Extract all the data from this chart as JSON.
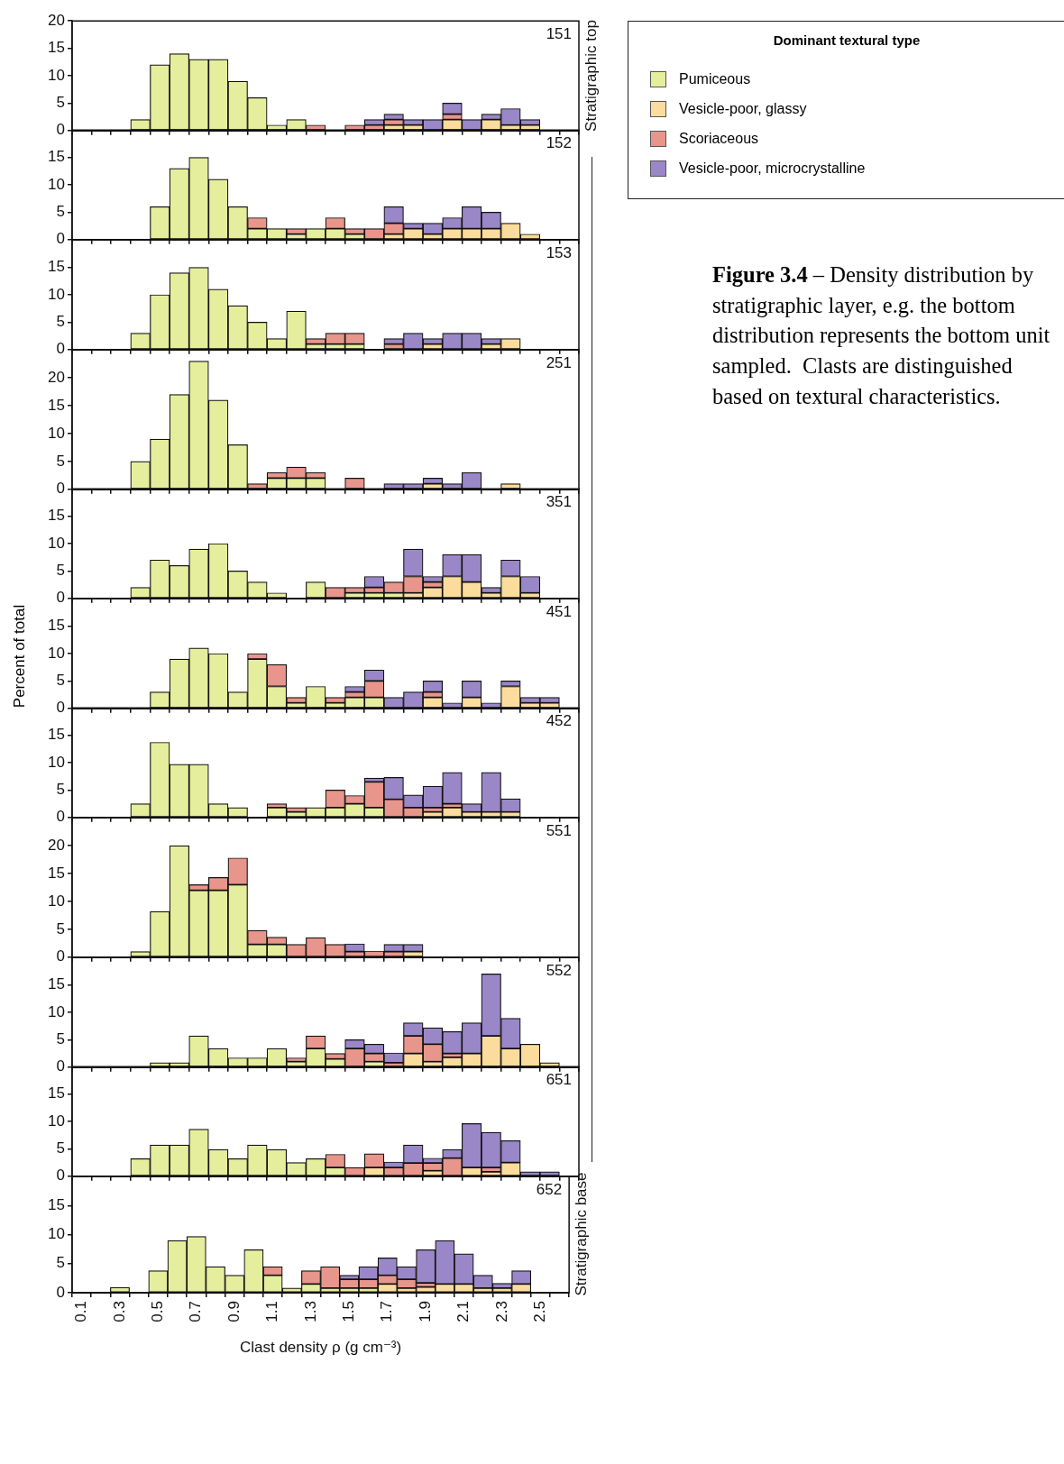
{
  "chart_data": [
    {
      "type": "bar",
      "stacked": true,
      "title": "151",
      "tick_labels": "y",
      "legend": "right",
      "legend_title": "Dominant textural type",
      "annotations": [
        "Stratigraphic top",
        "Figure 3.4",
        "– Density distribution by stratigraphic layer, e.g. the bottom distribution represents the bottom unit sampled.  Clasts are distinguished based on textural characteristics."
      ],
      "categories": [
        "0.1",
        null,
        "0.3",
        null,
        "0.5",
        null,
        "0.7",
        null,
        "0.9",
        null,
        "1.1",
        null,
        "1.3",
        null,
        "1.5",
        null,
        "1.7",
        null,
        "1.9",
        null,
        "2.1",
        null,
        "2.3",
        null,
        "2.5",
        null
      ],
      "ylim": [
        0,
        20
      ],
      "yticks": [
        0,
        5,
        10,
        15,
        20
      ],
      "series": [
        {
          "name": "Pumiceous",
          "color": "#e5ee9c",
          "values": [
            null,
            null,
            null,
            2,
            12,
            14,
            13,
            13,
            9,
            6,
            1,
            2,
            null,
            null,
            null,
            null,
            null,
            null,
            null,
            null,
            null,
            null,
            null,
            null,
            null,
            null
          ]
        },
        {
          "name": "Vesicle-poor, glassy",
          "color": "#fbdc9c",
          "values": [
            null,
            null,
            null,
            null,
            null,
            null,
            null,
            null,
            null,
            null,
            null,
            null,
            null,
            null,
            null,
            null,
            1,
            1,
            null,
            2,
            null,
            2,
            1,
            1,
            null,
            null
          ]
        },
        {
          "name": "Scoriaceous",
          "color": "#e8958b",
          "values": [
            null,
            null,
            null,
            null,
            null,
            null,
            null,
            null,
            null,
            null,
            null,
            null,
            1,
            null,
            1,
            1,
            1,
            null,
            null,
            1,
            null,
            null,
            null,
            null,
            null,
            null
          ]
        },
        {
          "name": "Vesicle-poor, microcrystalline",
          "color": "#9a87c8",
          "values": [
            null,
            null,
            null,
            null,
            null,
            null,
            null,
            null,
            null,
            null,
            null,
            null,
            null,
            null,
            null,
            1,
            1,
            1,
            2,
            2,
            2,
            1,
            3,
            1,
            null,
            null
          ]
        }
      ]
    },
    {
      "type": "bar",
      "stacked": true,
      "title": "152",
      "tick_labels": "y",
      "categories": [
        "0.1",
        null,
        "0.3",
        null,
        "0.5",
        null,
        "0.7",
        null,
        "0.9",
        null,
        "1.1",
        null,
        "1.3",
        null,
        "1.5",
        null,
        "1.7",
        null,
        "1.9",
        null,
        "2.1",
        null,
        "2.3",
        null,
        "2.5",
        null
      ],
      "ylim": [
        0,
        20
      ],
      "yticks": [
        0,
        5,
        10,
        15
      ],
      "series": [
        {
          "color": "#e5ee9c",
          "values": [
            null,
            null,
            null,
            null,
            6,
            13,
            15,
            11,
            6,
            2,
            2,
            1,
            2,
            2,
            1,
            null,
            null,
            null,
            null,
            null,
            null,
            null,
            null,
            null,
            null,
            null
          ]
        },
        {
          "color": "#fbdc9c",
          "values": [
            null,
            null,
            null,
            null,
            null,
            null,
            null,
            null,
            null,
            null,
            null,
            null,
            null,
            null,
            null,
            null,
            1,
            2,
            1,
            2,
            2,
            2,
            3,
            1,
            null,
            null
          ]
        },
        {
          "color": "#e8958b",
          "values": [
            null,
            null,
            null,
            null,
            null,
            null,
            null,
            null,
            null,
            2,
            null,
            1,
            null,
            2,
            1,
            2,
            2,
            null,
            null,
            null,
            null,
            null,
            null,
            null,
            null,
            null
          ]
        },
        {
          "color": "#9a87c8",
          "values": [
            null,
            null,
            null,
            null,
            null,
            null,
            null,
            null,
            null,
            null,
            null,
            null,
            null,
            null,
            null,
            null,
            3,
            1,
            2,
            2,
            4,
            3,
            null,
            null,
            null,
            null
          ]
        }
      ]
    },
    {
      "type": "bar",
      "stacked": true,
      "title": "153",
      "tick_labels": "y",
      "categories": [
        "0.1",
        null,
        "0.3",
        null,
        "0.5",
        null,
        "0.7",
        null,
        "0.9",
        null,
        "1.1",
        null,
        "1.3",
        null,
        "1.5",
        null,
        "1.7",
        null,
        "1.9",
        null,
        "2.1",
        null,
        "2.3",
        null,
        "2.5",
        null
      ],
      "ylim": [
        0,
        20
      ],
      "yticks": [
        0,
        5,
        10,
        15
      ],
      "series": [
        {
          "color": "#e5ee9c",
          "values": [
            null,
            null,
            null,
            3,
            10,
            14,
            15,
            11,
            8,
            5,
            2,
            7,
            1,
            1,
            1,
            null,
            null,
            null,
            null,
            null,
            null,
            null,
            null,
            null,
            null,
            null
          ]
        },
        {
          "color": "#fbdc9c",
          "values": [
            null,
            null,
            null,
            null,
            null,
            null,
            null,
            null,
            null,
            null,
            null,
            null,
            null,
            null,
            null,
            null,
            null,
            null,
            1,
            null,
            null,
            1,
            2,
            null,
            null,
            null
          ]
        },
        {
          "color": "#e8958b",
          "values": [
            null,
            null,
            null,
            null,
            null,
            null,
            null,
            null,
            null,
            null,
            null,
            null,
            1,
            2,
            2,
            null,
            1,
            null,
            null,
            null,
            null,
            null,
            null,
            null,
            null,
            null
          ]
        },
        {
          "color": "#9a87c8",
          "values": [
            null,
            null,
            null,
            null,
            null,
            null,
            null,
            null,
            null,
            null,
            null,
            null,
            null,
            null,
            null,
            null,
            1,
            3,
            1,
            3,
            3,
            1,
            null,
            null,
            null,
            null
          ]
        }
      ]
    },
    {
      "type": "bar",
      "stacked": true,
      "title": "251",
      "tick_labels": "y",
      "categories": [
        "0.1",
        null,
        "0.3",
        null,
        "0.5",
        null,
        "0.7",
        null,
        "0.9",
        null,
        "1.1",
        null,
        "1.3",
        null,
        "1.5",
        null,
        "1.7",
        null,
        "1.9",
        null,
        "2.1",
        null,
        "2.3",
        null,
        "2.5",
        null
      ],
      "ylim": [
        0,
        25
      ],
      "yticks": [
        0,
        5,
        10,
        15,
        20
      ],
      "series": [
        {
          "color": "#e5ee9c",
          "values": [
            null,
            null,
            null,
            5,
            9,
            17,
            23,
            16,
            8,
            null,
            2,
            2,
            2,
            null,
            null,
            null,
            null,
            null,
            null,
            null,
            null,
            null,
            null,
            null,
            null,
            null
          ]
        },
        {
          "color": "#fbdc9c",
          "values": [
            null,
            null,
            null,
            null,
            null,
            null,
            null,
            null,
            null,
            null,
            null,
            null,
            null,
            null,
            null,
            null,
            null,
            null,
            1,
            null,
            null,
            null,
            1,
            null,
            null,
            null
          ]
        },
        {
          "color": "#e8958b",
          "values": [
            null,
            null,
            null,
            null,
            null,
            null,
            null,
            null,
            null,
            1,
            1,
            2,
            1,
            null,
            2,
            null,
            null,
            null,
            null,
            null,
            null,
            null,
            null,
            null,
            null,
            null
          ]
        },
        {
          "color": "#9a87c8",
          "values": [
            null,
            null,
            null,
            null,
            null,
            null,
            null,
            null,
            null,
            null,
            null,
            null,
            null,
            null,
            null,
            null,
            1,
            1,
            1,
            1,
            3,
            null,
            null,
            null,
            null,
            null
          ]
        }
      ]
    },
    {
      "type": "bar",
      "stacked": true,
      "title": "351",
      "tick_labels": "y",
      "ylabel": "Percent of total",
      "categories": [
        "0.1",
        null,
        "0.3",
        null,
        "0.5",
        null,
        "0.7",
        null,
        "0.9",
        null,
        "1.1",
        null,
        "1.3",
        null,
        "1.5",
        null,
        "1.7",
        null,
        "1.9",
        null,
        "2.1",
        null,
        "2.3",
        null,
        "2.5",
        null
      ],
      "ylim": [
        0,
        20
      ],
      "yticks": [
        0,
        5,
        10,
        15
      ],
      "series": [
        {
          "color": "#e5ee9c",
          "values": [
            null,
            null,
            null,
            2,
            7,
            6,
            9,
            10,
            5,
            3,
            1,
            null,
            3,
            null,
            1,
            1,
            1,
            null,
            null,
            null,
            null,
            null,
            null,
            null,
            null,
            null
          ]
        },
        {
          "color": "#fbdc9c",
          "values": [
            null,
            null,
            null,
            null,
            null,
            null,
            null,
            null,
            null,
            null,
            null,
            null,
            null,
            null,
            null,
            null,
            null,
            1,
            2,
            4,
            3,
            1,
            4,
            1,
            null,
            null
          ]
        },
        {
          "color": "#e8958b",
          "values": [
            null,
            null,
            null,
            null,
            null,
            null,
            null,
            null,
            null,
            null,
            null,
            null,
            null,
            2,
            1,
            1,
            2,
            3,
            1,
            null,
            null,
            null,
            null,
            null,
            null,
            null
          ]
        },
        {
          "color": "#9a87c8",
          "values": [
            null,
            null,
            null,
            null,
            null,
            null,
            null,
            null,
            null,
            null,
            null,
            null,
            null,
            null,
            null,
            2,
            null,
            5,
            1,
            4,
            5,
            1,
            3,
            3,
            null,
            null
          ]
        }
      ]
    },
    {
      "type": "bar",
      "stacked": true,
      "title": "451",
      "tick_labels": "y",
      "categories": [
        "0.1",
        null,
        "0.3",
        null,
        "0.5",
        null,
        "0.7",
        null,
        "0.9",
        null,
        "1.1",
        null,
        "1.3",
        null,
        "1.5",
        null,
        "1.7",
        null,
        "1.9",
        null,
        "2.1",
        null,
        "2.3",
        null,
        "2.5",
        null
      ],
      "ylim": [
        0,
        20
      ],
      "yticks": [
        0,
        5,
        10,
        15
      ],
      "series": [
        {
          "color": "#e5ee9c",
          "values": [
            null,
            null,
            null,
            null,
            3,
            9,
            11,
            10,
            3,
            9,
            4,
            1,
            4,
            1,
            2,
            2,
            null,
            null,
            null,
            null,
            null,
            null,
            null,
            null,
            null,
            null
          ]
        },
        {
          "color": "#fbdc9c",
          "values": [
            null,
            null,
            null,
            null,
            null,
            null,
            null,
            null,
            null,
            null,
            null,
            null,
            null,
            null,
            null,
            null,
            null,
            null,
            2,
            null,
            2,
            null,
            4,
            1,
            1,
            null
          ]
        },
        {
          "color": "#e8958b",
          "values": [
            null,
            null,
            null,
            null,
            null,
            null,
            null,
            null,
            null,
            1,
            4,
            1,
            null,
            1,
            1,
            3,
            null,
            null,
            1,
            null,
            null,
            null,
            null,
            null,
            null,
            null
          ]
        },
        {
          "color": "#9a87c8",
          "values": [
            null,
            null,
            null,
            null,
            null,
            null,
            null,
            null,
            null,
            null,
            null,
            null,
            null,
            null,
            1,
            2,
            2,
            3,
            2,
            1,
            3,
            1,
            1,
            1,
            1,
            null
          ]
        }
      ]
    },
    {
      "type": "bar",
      "stacked": true,
      "title": "452",
      "tick_labels": "y",
      "categories": [
        "0.1",
        null,
        "0.3",
        null,
        "0.5",
        null,
        "0.7",
        null,
        "0.9",
        null,
        "1.1",
        null,
        "1.3",
        null,
        "1.5",
        null,
        "1.7",
        null,
        "1.9",
        null,
        "2.1",
        null,
        "2.3",
        null,
        "2.5",
        null
      ],
      "ylim": [
        0,
        20
      ],
      "yticks": [
        0,
        5,
        10,
        15
      ],
      "series": [
        {
          "color": "#e5ee9c",
          "values": [
            null,
            null,
            null,
            2.5,
            13.7,
            9.7,
            9.7,
            2.5,
            1.8,
            null,
            1.8,
            1,
            1.8,
            1.8,
            2.5,
            1.8,
            null,
            null,
            null,
            null,
            null,
            null,
            null,
            null,
            null,
            null
          ]
        },
        {
          "color": "#fbdc9c",
          "values": [
            null,
            null,
            null,
            null,
            null,
            null,
            null,
            null,
            null,
            null,
            null,
            null,
            null,
            null,
            null,
            null,
            null,
            null,
            1,
            1.8,
            1,
            1,
            1,
            null,
            null,
            null
          ]
        },
        {
          "color": "#e8958b",
          "values": [
            null,
            null,
            null,
            null,
            null,
            null,
            null,
            null,
            null,
            null,
            0.7,
            0.8,
            null,
            3.2,
            1.5,
            4.7,
            3.3,
            1.8,
            0.8,
            0.7,
            null,
            null,
            null,
            null,
            null,
            null
          ]
        },
        {
          "color": "#9a87c8",
          "values": [
            null,
            null,
            null,
            null,
            null,
            null,
            null,
            null,
            null,
            null,
            null,
            null,
            null,
            null,
            null,
            0.7,
            4,
            2.3,
            3.9,
            5.7,
            1.5,
            7.2,
            2.4,
            null,
            null,
            null
          ]
        }
      ]
    },
    {
      "type": "bar",
      "stacked": true,
      "title": "551",
      "tick_labels": "y",
      "categories": [
        "0.1",
        null,
        "0.3",
        null,
        "0.5",
        null,
        "0.7",
        null,
        "0.9",
        null,
        "1.1",
        null,
        "1.3",
        null,
        "1.5",
        null,
        "1.7",
        null,
        "1.9",
        null,
        "2.1",
        null,
        "2.3",
        null,
        "2.5",
        null
      ],
      "ylim": [
        0,
        25
      ],
      "yticks": [
        0,
        5,
        10,
        15,
        20
      ],
      "series": [
        {
          "color": "#e5ee9c",
          "values": [
            null,
            null,
            null,
            1,
            8.2,
            20,
            12,
            12,
            13,
            2.3,
            2.3,
            null,
            null,
            null,
            null,
            null,
            null,
            null,
            null,
            null,
            null,
            null,
            null,
            null,
            null,
            null
          ]
        },
        {
          "color": "#fbdc9c",
          "values": [
            null,
            null,
            null,
            null,
            null,
            null,
            null,
            null,
            null,
            null,
            null,
            null,
            null,
            null,
            null,
            null,
            null,
            1,
            null,
            null,
            null,
            null,
            null,
            null,
            null,
            null
          ]
        },
        {
          "color": "#e8958b",
          "values": [
            null,
            null,
            null,
            null,
            null,
            null,
            1,
            2.3,
            4.8,
            2.5,
            1.3,
            2.3,
            3.5,
            2.3,
            1,
            1.1,
            1,
            null,
            null,
            null,
            null,
            null,
            null,
            null,
            null,
            null
          ]
        },
        {
          "color": "#9a87c8",
          "values": [
            null,
            null,
            null,
            null,
            null,
            null,
            null,
            null,
            null,
            null,
            null,
            null,
            null,
            null,
            1.4,
            null,
            1.3,
            1.3,
            null,
            null,
            null,
            null,
            null,
            null,
            null,
            null
          ]
        }
      ]
    },
    {
      "type": "bar",
      "stacked": true,
      "title": "552",
      "tick_labels": "y",
      "categories": [
        "0.1",
        null,
        "0.3",
        null,
        "0.5",
        null,
        "0.7",
        null,
        "0.9",
        null,
        "1.1",
        null,
        "1.3",
        null,
        "1.5",
        null,
        "1.7",
        null,
        "1.9",
        null,
        "2.1",
        null,
        "2.3",
        null,
        "2.5",
        null
      ],
      "ylim": [
        0,
        20
      ],
      "yticks": [
        0,
        5,
        10,
        15
      ],
      "series": [
        {
          "color": "#e5ee9c",
          "values": [
            null,
            null,
            null,
            null,
            0.8,
            0.8,
            5.7,
            3.4,
            1.7,
            1.7,
            3.4,
            1,
            3.4,
            1.5,
            null,
            1,
            null,
            null,
            null,
            null,
            null,
            null,
            null,
            null,
            null,
            null
          ]
        },
        {
          "color": "#fbdc9c",
          "values": [
            null,
            null,
            null,
            null,
            null,
            null,
            null,
            null,
            null,
            null,
            null,
            null,
            null,
            null,
            null,
            null,
            null,
            2.5,
            1,
            1.8,
            2.5,
            5.7,
            3.4,
            4.2,
            0.8,
            null
          ]
        },
        {
          "color": "#e8958b",
          "values": [
            null,
            null,
            null,
            null,
            null,
            null,
            null,
            null,
            null,
            null,
            null,
            0.7,
            2.3,
            1,
            3.4,
            1.5,
            0.8,
            3.2,
            3.2,
            0.7,
            null,
            null,
            null,
            null,
            null,
            null
          ]
        },
        {
          "color": "#9a87c8",
          "values": [
            null,
            null,
            null,
            null,
            null,
            null,
            null,
            null,
            null,
            null,
            null,
            null,
            null,
            null,
            1.6,
            1.7,
            1.8,
            2.4,
            3,
            4,
            5.6,
            11.3,
            5.5,
            null,
            null,
            null
          ]
        }
      ]
    },
    {
      "type": "bar",
      "stacked": true,
      "title": "651",
      "tick_labels": "y",
      "categories": [
        "0.1",
        null,
        "0.3",
        null,
        "0.5",
        null,
        "0.7",
        null,
        "0.9",
        null,
        "1.1",
        null,
        "1.3",
        null,
        "1.5",
        null,
        "1.7",
        null,
        "1.9",
        null,
        "2.1",
        null,
        "2.3",
        null,
        "2.5",
        null
      ],
      "ylim": [
        0,
        20
      ],
      "yticks": [
        0,
        5,
        10,
        15
      ],
      "series": [
        {
          "color": "#e5ee9c",
          "values": [
            null,
            null,
            null,
            3.2,
            5.7,
            5.7,
            8.6,
            4.9,
            3.2,
            5.7,
            4.9,
            2.5,
            3.2,
            1.6,
            null,
            null,
            null,
            null,
            null,
            null,
            null,
            null,
            null,
            null,
            null,
            null
          ]
        },
        {
          "color": "#fbdc9c",
          "values": [
            null,
            null,
            null,
            null,
            null,
            null,
            null,
            null,
            null,
            null,
            null,
            null,
            null,
            null,
            null,
            1.6,
            null,
            null,
            1,
            null,
            1.6,
            0.8,
            2.5,
            null,
            null,
            null
          ]
        },
        {
          "color": "#e8958b",
          "values": [
            null,
            null,
            null,
            null,
            null,
            null,
            null,
            null,
            null,
            null,
            null,
            null,
            null,
            2.4,
            1.6,
            2.5,
            1.6,
            2.4,
            1.4,
            3.3,
            null,
            0.8,
            null,
            null,
            null,
            null
          ]
        },
        {
          "color": "#9a87c8",
          "values": [
            null,
            null,
            null,
            null,
            null,
            null,
            null,
            null,
            null,
            null,
            null,
            null,
            null,
            null,
            null,
            null,
            1,
            3.3,
            0.9,
            1.6,
            8,
            6.4,
            4,
            0.8,
            0.8,
            null
          ]
        }
      ]
    },
    {
      "type": "bar",
      "stacked": true,
      "title": "652",
      "xlabel": "Clast density ρ (g cm⁻³)",
      "annotations": [
        "Stratigraphic base"
      ],
      "categories": [
        "0.1",
        null,
        "0.3",
        null,
        "0.5",
        null,
        "0.7",
        null,
        "0.9",
        null,
        "1.1",
        null,
        "1.3",
        null,
        "1.5",
        null,
        "1.7",
        null,
        "1.9",
        null,
        "2.1",
        null,
        "2.3",
        null,
        "2.5",
        null
      ],
      "ylim": [
        0,
        20
      ],
      "yticks": [
        0,
        5,
        10,
        15
      ],
      "series": [
        {
          "color": "#e5ee9c",
          "values": [
            null,
            null,
            0.9,
            null,
            3.8,
            9,
            9.7,
            4.5,
            3,
            7.4,
            3,
            0.8,
            1.5,
            0.8,
            0.8,
            0.8,
            null,
            null,
            null,
            null,
            null,
            null,
            null,
            null,
            null,
            null
          ]
        },
        {
          "color": "#fbdc9c",
          "values": [
            null,
            null,
            null,
            null,
            null,
            null,
            null,
            null,
            null,
            null,
            null,
            null,
            null,
            null,
            null,
            null,
            1.5,
            0.8,
            1,
            1.5,
            1.5,
            0.8,
            0.8,
            1.5,
            null,
            null
          ]
        },
        {
          "color": "#e8958b",
          "values": [
            null,
            null,
            null,
            null,
            null,
            null,
            null,
            null,
            null,
            null,
            1.5,
            null,
            2.3,
            3.7,
            1.5,
            1.5,
            1.5,
            1.5,
            0.7,
            null,
            null,
            null,
            null,
            null,
            null,
            null
          ]
        },
        {
          "color": "#9a87c8",
          "values": [
            null,
            null,
            null,
            null,
            null,
            null,
            null,
            null,
            null,
            null,
            null,
            null,
            null,
            null,
            0.7,
            2.2,
            3,
            2.2,
            5.7,
            7.5,
            5.2,
            2.2,
            0.8,
            2.3,
            null,
            null
          ]
        }
      ]
    }
  ]
}
